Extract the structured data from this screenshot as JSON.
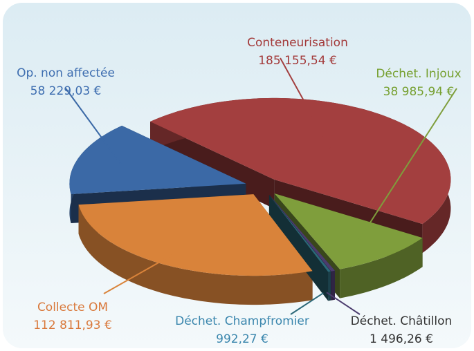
{
  "chart_data": {
    "type": "pie3d",
    "categories": [
      "Conteneurisation",
      "Déchet. Injoux",
      "Déchet. Châtillon",
      "Déchet. Champfromier",
      "Collecte OM",
      "Op. non affectée"
    ],
    "values": [
      185155.54,
      38985.94,
      1496.26,
      992.27,
      112811.93,
      58229.03
    ],
    "value_labels": [
      "185 155,54 €",
      "38 985,94 €",
      "1 496,26 €",
      "992,27 €",
      "112 811,93 €",
      "58 229,03 €"
    ],
    "colors": [
      "#a33f3f",
      "#7f9e3c",
      "#4b3c6e",
      "#2b6878",
      "#d9833a",
      "#3b69a6"
    ]
  }
}
